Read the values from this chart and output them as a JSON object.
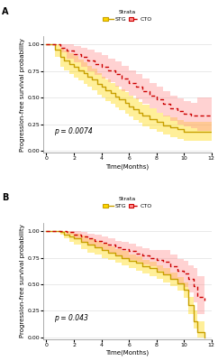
{
  "panel_A": {
    "p_value": "p = 0.0074",
    "STG": {
      "color": "#C8A000",
      "fill_color": "#FFD700",
      "fill_alpha": 0.4,
      "times": [
        0,
        0.3,
        0.6,
        1,
        1.3,
        1.7,
        2,
        2.3,
        2.7,
        3,
        3.3,
        3.7,
        4,
        4.3,
        4.7,
        5,
        5.3,
        5.7,
        6,
        6.3,
        6.7,
        7,
        7.5,
        8,
        8.5,
        9,
        9.5,
        10,
        11,
        12
      ],
      "surv": [
        1.0,
        1.0,
        0.95,
        0.88,
        0.85,
        0.82,
        0.79,
        0.76,
        0.73,
        0.7,
        0.67,
        0.63,
        0.6,
        0.57,
        0.54,
        0.51,
        0.48,
        0.45,
        0.42,
        0.39,
        0.36,
        0.33,
        0.3,
        0.27,
        0.24,
        0.22,
        0.2,
        0.18,
        0.18,
        0.18
      ],
      "upper": [
        1.0,
        1.0,
        1.0,
        0.97,
        0.94,
        0.92,
        0.89,
        0.86,
        0.83,
        0.8,
        0.77,
        0.73,
        0.7,
        0.67,
        0.64,
        0.61,
        0.58,
        0.55,
        0.52,
        0.49,
        0.46,
        0.43,
        0.4,
        0.36,
        0.33,
        0.31,
        0.29,
        0.27,
        0.27,
        0.27
      ],
      "lower": [
        1.0,
        1.0,
        0.88,
        0.79,
        0.76,
        0.72,
        0.69,
        0.66,
        0.63,
        0.6,
        0.57,
        0.53,
        0.5,
        0.47,
        0.44,
        0.41,
        0.38,
        0.35,
        0.32,
        0.29,
        0.26,
        0.23,
        0.2,
        0.18,
        0.15,
        0.13,
        0.11,
        0.09,
        0.09,
        0.09
      ]
    },
    "CTO": {
      "color": "#CC0000",
      "fill_color": "#FF9090",
      "fill_alpha": 0.4,
      "times": [
        0,
        0.5,
        1,
        1.5,
        2,
        2.5,
        3,
        3.5,
        4,
        4.5,
        5,
        5.5,
        6,
        6.5,
        7,
        7.5,
        8,
        8.5,
        9,
        9.5,
        10,
        10.5,
        11,
        11.5,
        12
      ],
      "surv": [
        1.0,
        1.0,
        0.97,
        0.94,
        0.91,
        0.88,
        0.85,
        0.82,
        0.79,
        0.76,
        0.72,
        0.68,
        0.64,
        0.6,
        0.56,
        0.52,
        0.48,
        0.44,
        0.4,
        0.37,
        0.35,
        0.33,
        0.33,
        0.33,
        0.33
      ],
      "upper": [
        1.0,
        1.0,
        1.0,
        1.0,
        0.99,
        0.97,
        0.95,
        0.93,
        0.9,
        0.87,
        0.84,
        0.8,
        0.76,
        0.72,
        0.68,
        0.64,
        0.6,
        0.56,
        0.52,
        0.49,
        0.47,
        0.45,
        0.5,
        0.5,
        0.5
      ],
      "lower": [
        1.0,
        1.0,
        0.93,
        0.87,
        0.83,
        0.79,
        0.75,
        0.71,
        0.68,
        0.65,
        0.6,
        0.56,
        0.52,
        0.48,
        0.44,
        0.4,
        0.36,
        0.32,
        0.28,
        0.25,
        0.23,
        0.21,
        0.19,
        0.19,
        0.19
      ]
    }
  },
  "panel_B": {
    "p_value": "p = 0.043",
    "STG": {
      "color": "#C8A000",
      "fill_color": "#FFD700",
      "fill_alpha": 0.4,
      "times": [
        0,
        0.5,
        1,
        1.3,
        1.7,
        2,
        2.5,
        3,
        3.5,
        4,
        4.5,
        5,
        5.5,
        6,
        6.5,
        7,
        7.5,
        8,
        8.5,
        9,
        9.5,
        10,
        10.3,
        10.7,
        11,
        11.5
      ],
      "surv": [
        1.0,
        1.0,
        0.99,
        0.97,
        0.95,
        0.93,
        0.9,
        0.87,
        0.85,
        0.82,
        0.8,
        0.77,
        0.75,
        0.72,
        0.7,
        0.67,
        0.65,
        0.62,
        0.59,
        0.55,
        0.51,
        0.45,
        0.3,
        0.15,
        0.05,
        0.0
      ],
      "upper": [
        1.0,
        1.0,
        1.0,
        1.0,
        0.99,
        0.98,
        0.96,
        0.93,
        0.91,
        0.88,
        0.86,
        0.83,
        0.81,
        0.78,
        0.76,
        0.73,
        0.71,
        0.68,
        0.65,
        0.61,
        0.57,
        0.52,
        0.38,
        0.25,
        0.15,
        0.05
      ],
      "lower": [
        1.0,
        1.0,
        0.97,
        0.93,
        0.9,
        0.87,
        0.83,
        0.8,
        0.78,
        0.75,
        0.73,
        0.7,
        0.68,
        0.65,
        0.63,
        0.6,
        0.58,
        0.55,
        0.52,
        0.48,
        0.44,
        0.37,
        0.22,
        0.08,
        0.0,
        0.0
      ]
    },
    "CTO": {
      "color": "#CC0000",
      "fill_color": "#FF9090",
      "fill_alpha": 0.4,
      "times": [
        0,
        0.5,
        1,
        1.5,
        2,
        2.5,
        3,
        3.5,
        4,
        4.5,
        5,
        5.5,
        6,
        6.5,
        7,
        7.5,
        8,
        8.5,
        9,
        9.5,
        10,
        10.3,
        10.7,
        11,
        11.5
      ],
      "surv": [
        1.0,
        1.0,
        1.0,
        0.99,
        0.97,
        0.95,
        0.93,
        0.91,
        0.89,
        0.87,
        0.85,
        0.83,
        0.81,
        0.79,
        0.77,
        0.75,
        0.73,
        0.71,
        0.67,
        0.63,
        0.6,
        0.55,
        0.48,
        0.38,
        0.35
      ],
      "upper": [
        1.0,
        1.0,
        1.0,
        1.0,
        1.0,
        0.99,
        0.98,
        0.97,
        0.95,
        0.93,
        0.91,
        0.9,
        0.88,
        0.86,
        0.84,
        0.82,
        0.82,
        0.82,
        0.78,
        0.74,
        0.72,
        0.68,
        0.65,
        0.58,
        0.58
      ],
      "lower": [
        1.0,
        1.0,
        1.0,
        0.97,
        0.93,
        0.9,
        0.87,
        0.84,
        0.82,
        0.79,
        0.77,
        0.75,
        0.73,
        0.71,
        0.69,
        0.67,
        0.63,
        0.59,
        0.55,
        0.51,
        0.47,
        0.42,
        0.33,
        0.22,
        0.18
      ]
    }
  },
  "xlim": [
    -0.2,
    12
  ],
  "ylim": [
    -0.02,
    1.08
  ],
  "xticks": [
    0,
    2,
    4,
    6,
    8,
    10,
    12
  ],
  "yticks": [
    0.0,
    0.25,
    0.5,
    0.75,
    1.0
  ],
  "xlabel": "Time(Months)",
  "ylabel": "Progression-free survival probability",
  "legend_title": "Strata",
  "bg_color": "#FFFFFF",
  "panel_bg": "#FFFFFF",
  "stg_label": "STG",
  "cto_label": "CTO",
  "panel_label_A": "A",
  "panel_label_B": "B",
  "fontsize_axis": 5.0,
  "fontsize_tick": 4.5,
  "fontsize_legend": 4.5,
  "fontsize_pval": 5.5,
  "fontsize_panel": 7
}
